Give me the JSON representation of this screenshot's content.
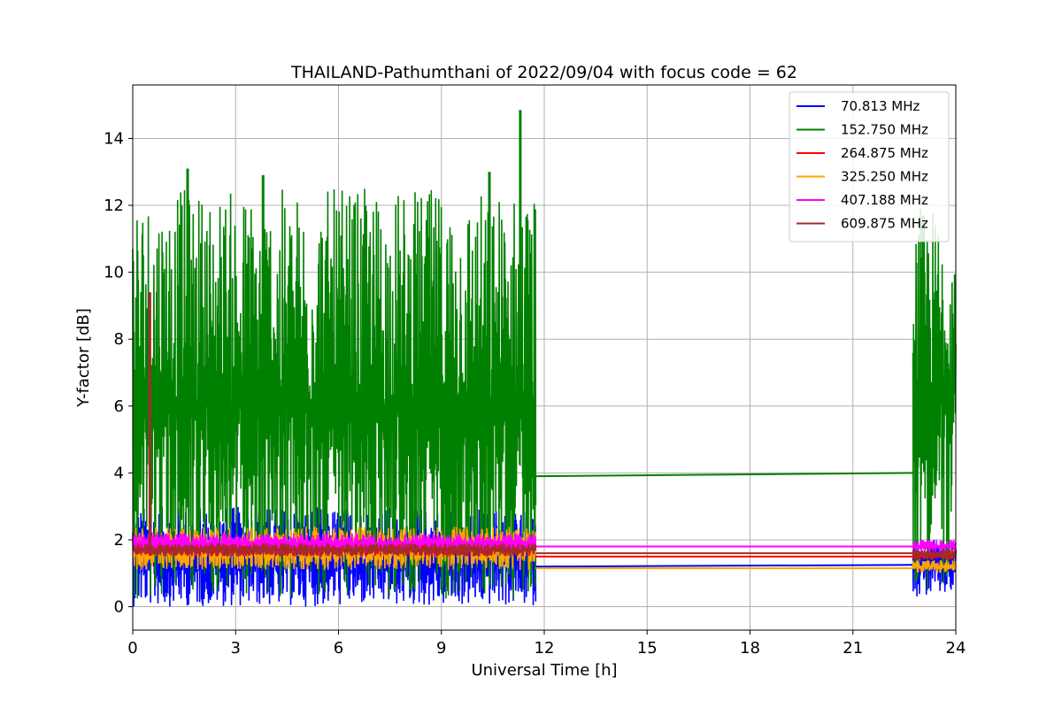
{
  "chart_data": {
    "type": "line",
    "title": "THAILAND-Pathumthani of 2022/09/04 with focus code = 62",
    "xlabel": "Universal Time [h]",
    "ylabel": "Y-factor [dB]",
    "xlim": [
      0,
      24
    ],
    "ylim": [
      -0.7,
      15.6
    ],
    "xticks": [
      0,
      3,
      6,
      9,
      12,
      15,
      18,
      21,
      24
    ],
    "yticks": [
      0,
      2,
      4,
      6,
      8,
      10,
      12,
      14
    ],
    "grid": true,
    "legend_position": "top-right",
    "series": [
      {
        "name": " 70.813 MHz",
        "color": "#0000ff",
        "segments": [
          {
            "t_start": 0.0,
            "t_end": 11.75,
            "mean": 1.4,
            "noise_low": 0.0,
            "noise_high": 3.0
          },
          {
            "t_start": 22.75,
            "t_end": 24.0,
            "mean": 1.3,
            "noise_low": 0.3,
            "noise_high": 2.0
          }
        ],
        "gap_line": {
          "x": [
            11.75,
            22.75
          ],
          "y": [
            1.2,
            1.25
          ]
        }
      },
      {
        "name": "152.750 MHz",
        "color": "#008000",
        "segments": [
          {
            "t_start": 0.0,
            "t_end": 11.75,
            "mean": 6.0,
            "noise_low": 0.2,
            "noise_high": 12.5
          },
          {
            "t_start": 22.75,
            "t_end": 24.0,
            "mean": 6.5,
            "noise_low": 0.5,
            "noise_high": 12.0
          }
        ],
        "peaks": [
          {
            "x": 1.6,
            "y": 13.1
          },
          {
            "x": 3.8,
            "y": 12.9
          },
          {
            "x": 10.4,
            "y": 13.0
          },
          {
            "x": 11.3,
            "y": 14.85
          }
        ],
        "gap_line": {
          "x": [
            11.75,
            22.75
          ],
          "y": [
            3.9,
            4.0
          ]
        }
      },
      {
        "name": "264.875 MHz",
        "color": "#ff0000",
        "segments": [
          {
            "t_start": 0.0,
            "t_end": 11.75,
            "mean": 1.75,
            "noise_low": 1.5,
            "noise_high": 2.0
          },
          {
            "t_start": 22.75,
            "t_end": 24.0,
            "mean": 1.55,
            "noise_low": 1.4,
            "noise_high": 1.7
          }
        ],
        "gap_line": {
          "x": [
            11.75,
            22.75
          ],
          "y": [
            1.5,
            1.5
          ]
        }
      },
      {
        "name": "325.250 MHz",
        "color": "#ffa500",
        "segments": [
          {
            "t_start": 0.0,
            "t_end": 11.75,
            "mean": 1.7,
            "noise_low": 1.1,
            "noise_high": 2.4
          },
          {
            "t_start": 22.75,
            "t_end": 24.0,
            "mean": 1.2,
            "noise_low": 1.0,
            "noise_high": 1.4
          }
        ],
        "gap_line": {
          "x": [
            11.75,
            22.75
          ],
          "y": [
            1.15,
            1.15
          ]
        }
      },
      {
        "name": "407.188 MHz",
        "color": "#ff00ff",
        "segments": [
          {
            "t_start": 0.0,
            "t_end": 11.75,
            "mean": 1.9,
            "noise_low": 1.6,
            "noise_high": 2.2
          },
          {
            "t_start": 22.75,
            "t_end": 24.0,
            "mean": 1.8,
            "noise_low": 1.6,
            "noise_high": 2.0
          }
        ],
        "gap_line": {
          "x": [
            11.75,
            22.75
          ],
          "y": [
            1.8,
            1.8
          ]
        }
      },
      {
        "name": "609.875 MHz",
        "color": "#a52a2a",
        "segments": [
          {
            "t_start": 0.0,
            "t_end": 11.75,
            "mean": 1.7,
            "noise_low": 1.5,
            "noise_high": 1.9
          },
          {
            "t_start": 22.75,
            "t_end": 24.0,
            "mean": 1.55,
            "noise_low": 1.4,
            "noise_high": 1.7
          }
        ],
        "peaks": [
          {
            "x": 0.5,
            "y": 9.4
          }
        ],
        "gap_line": {
          "x": [
            11.75,
            22.75
          ],
          "y": [
            1.6,
            1.6
          ]
        }
      }
    ]
  }
}
